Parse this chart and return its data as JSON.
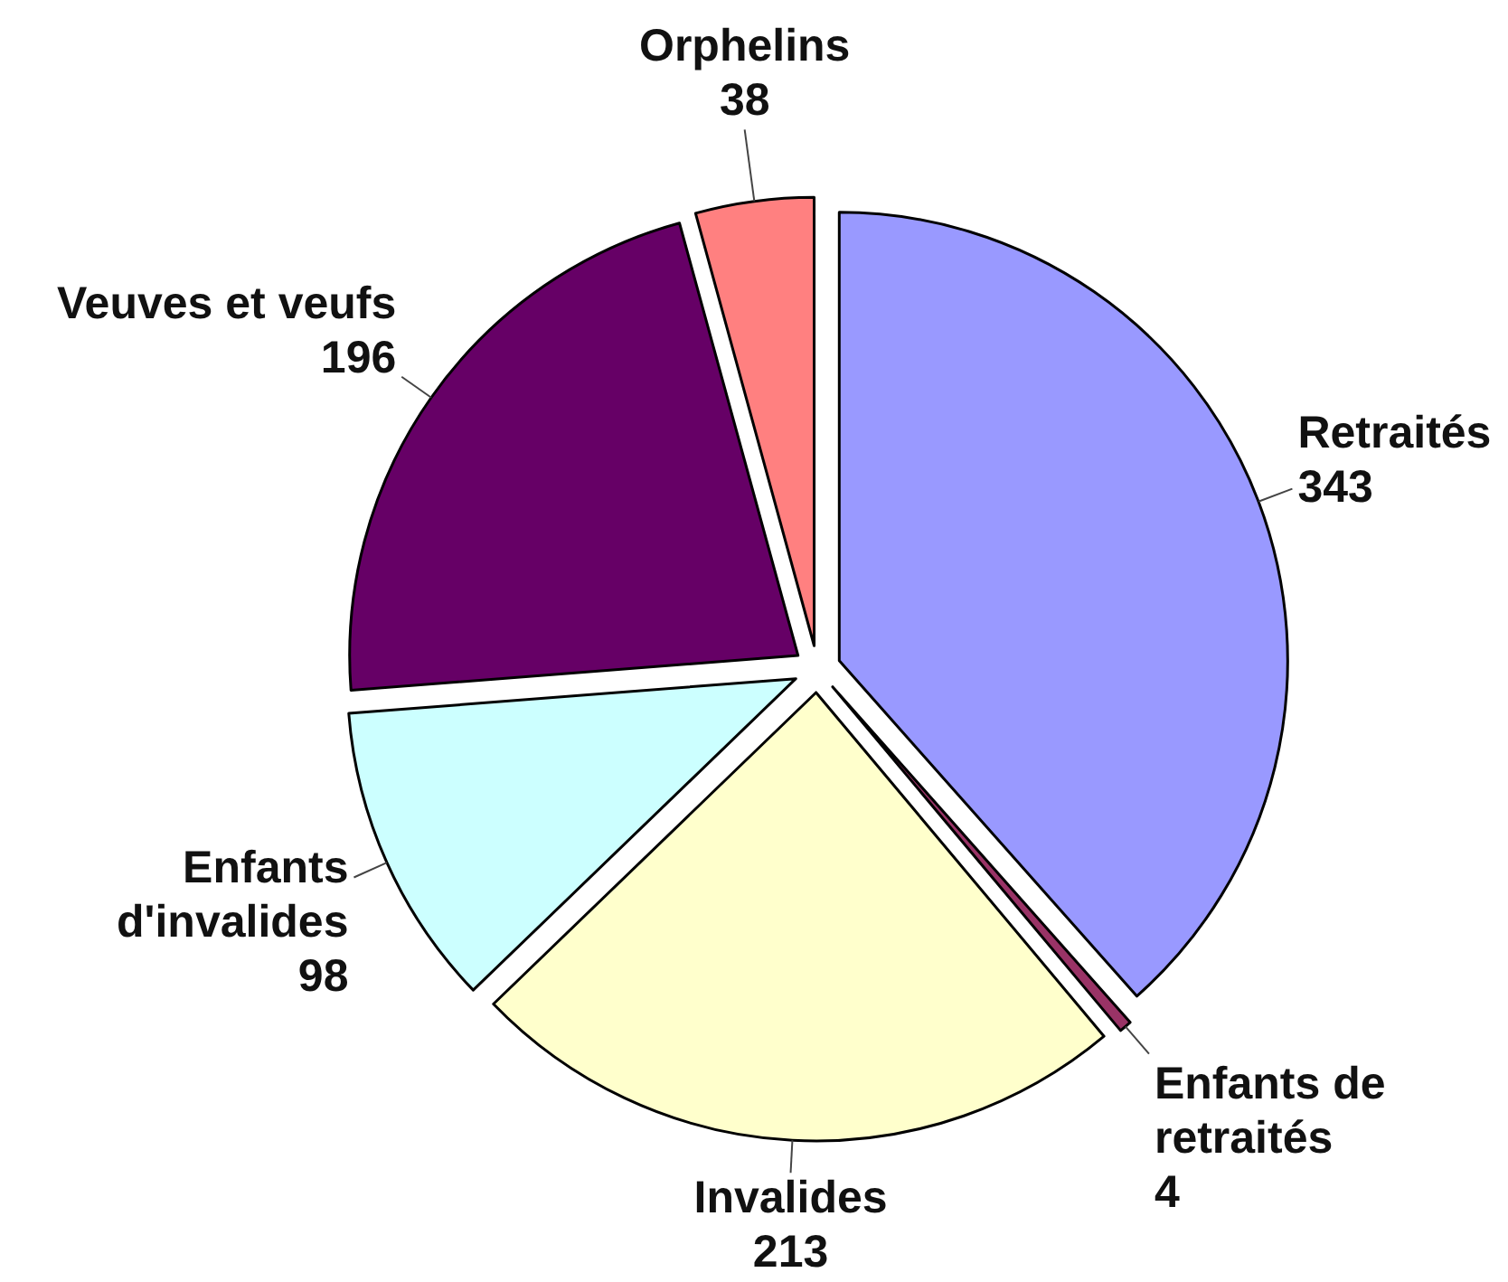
{
  "chart_data": {
    "type": "pie",
    "categories": [
      "Retraités",
      "Enfants de retraités",
      "Invalides",
      "Enfants d'invalides",
      "Veuves et veufs",
      "Orphelins"
    ],
    "values": [
      343,
      4,
      213,
      98,
      196,
      38
    ],
    "colors": [
      "#9999ff",
      "#993366",
      "#ffffcc",
      "#ccffff",
      "#660066",
      "#ff8080"
    ],
    "data_labels": true
  }
}
